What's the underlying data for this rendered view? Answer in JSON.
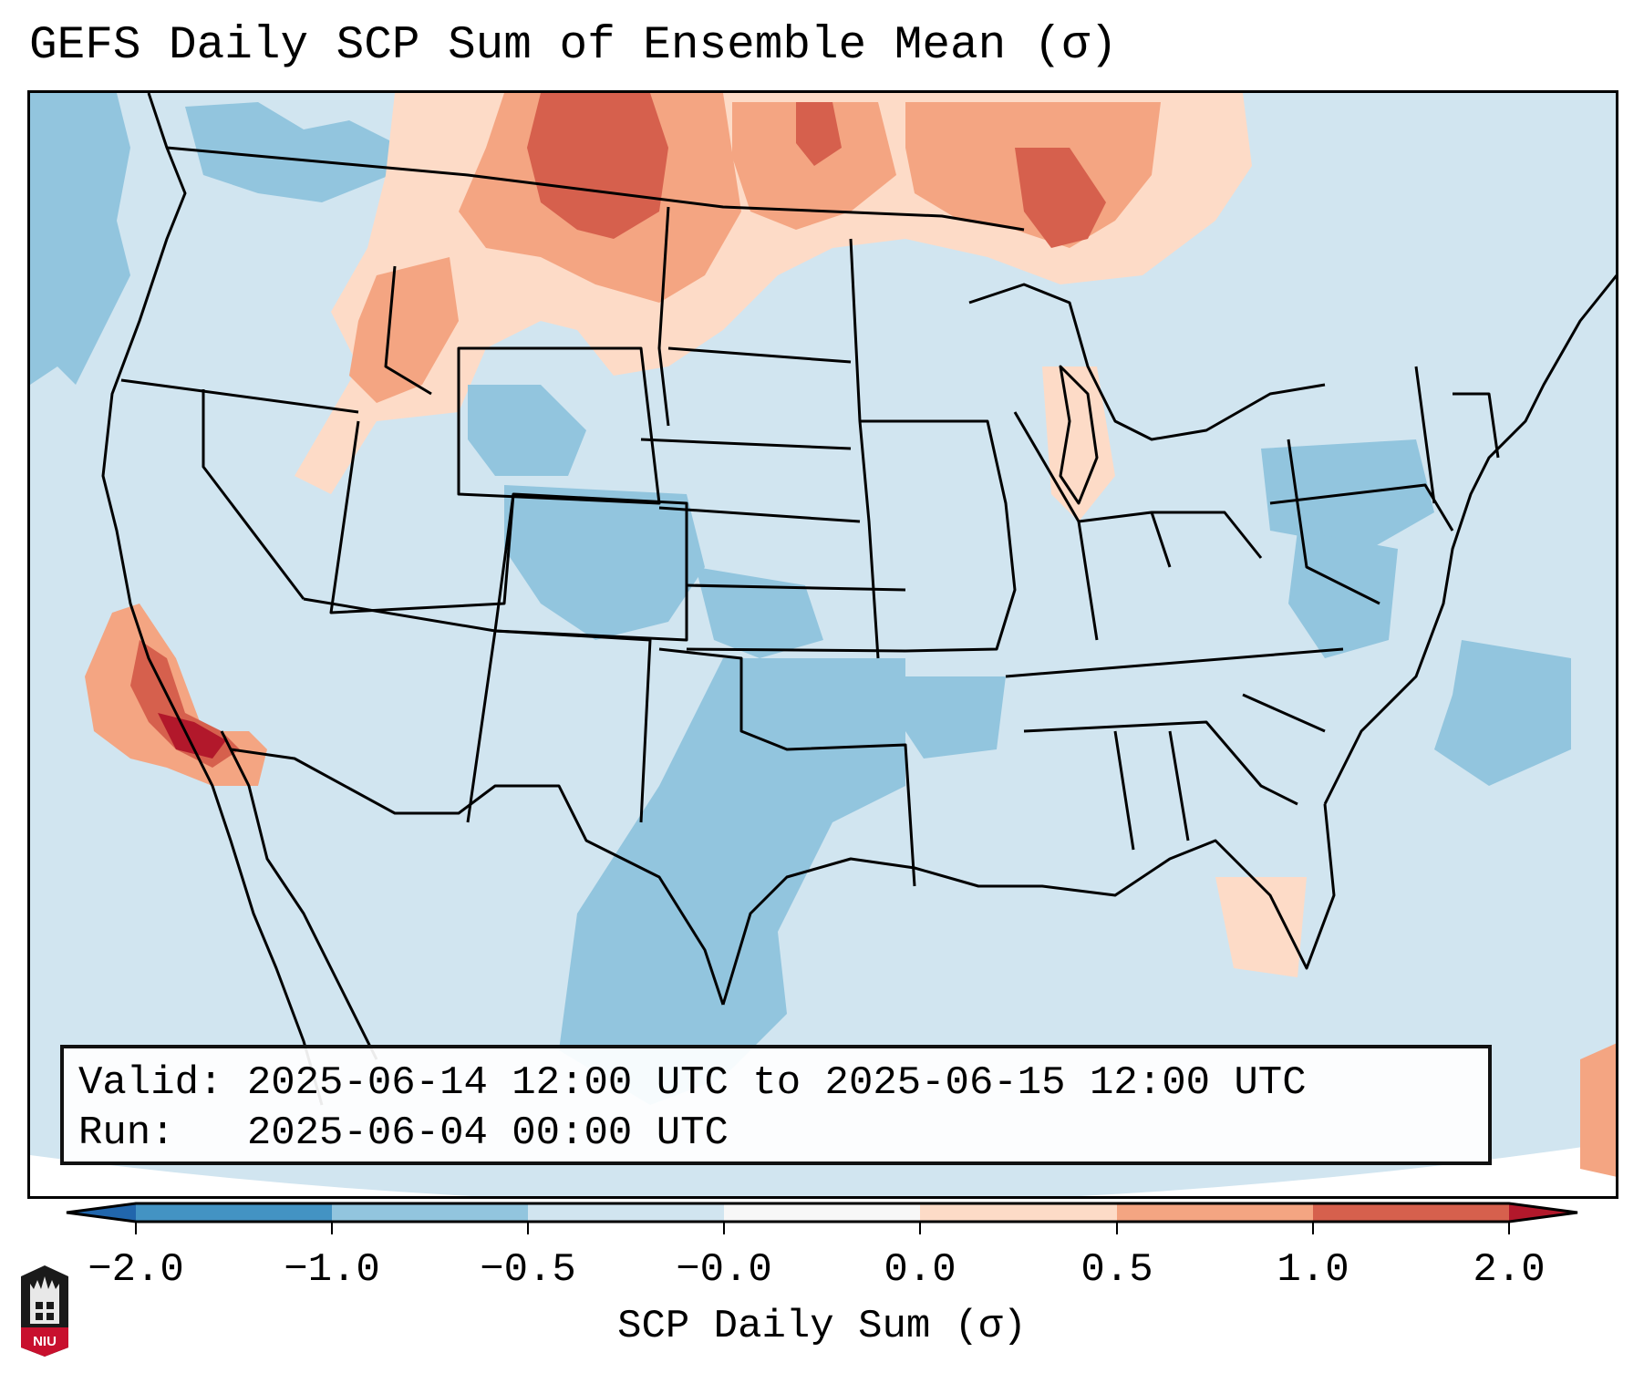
{
  "title": "GEFS Daily SCP Sum of Ensemble Mean (σ)",
  "info": {
    "valid_line": "Valid: 2025-06-14 12:00 UTC to 2025-06-15 12:00 UTC",
    "run_line": "Run:   2025-06-04 00:00 UTC"
  },
  "colorbar": {
    "label": "SCP Daily Sum (σ)",
    "ticks": [
      "−2.0",
      "−1.0",
      "−0.5",
      "−0.0",
      "0.0",
      "0.5",
      "1.0",
      "2.0"
    ],
    "bins": [
      {
        "color": "#2166ac",
        "range": "< -2.0"
      },
      {
        "color": "#4393c3",
        "range": "-2.0 to -1.0"
      },
      {
        "color": "#92c5de",
        "range": "-1.0 to -0.5"
      },
      {
        "color": "#d1e5f0",
        "range": "-0.5 to -0.0"
      },
      {
        "color": "#f7f7f7",
        "range": "-0.0 to 0.0"
      },
      {
        "color": "#fddbc7",
        "range": "0.0 to 0.5"
      },
      {
        "color": "#f4a582",
        "range": "0.5 to 1.0"
      },
      {
        "color": "#d6604d",
        "range": "1.0 to 2.0"
      },
      {
        "color": "#b2182b",
        "range": "> 2.0"
      }
    ],
    "extend": "both"
  },
  "logo": {
    "text": "NIU"
  },
  "map": {
    "region": "Continental United States",
    "background_color": "#d1e5f0"
  }
}
